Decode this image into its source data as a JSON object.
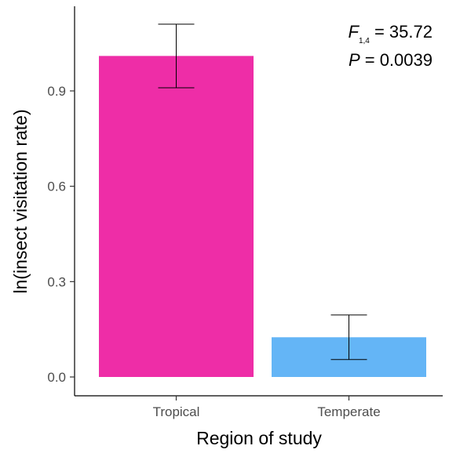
{
  "chart_data": {
    "type": "bar",
    "categories": [
      "Tropical",
      "Temperate"
    ],
    "values": [
      1.01,
      0.125
    ],
    "error_bars": [
      {
        "lower": 0.91,
        "upper": 1.11
      },
      {
        "lower": 0.055,
        "upper": 0.195
      }
    ],
    "colors": [
      "#EE2DA7",
      "#64B5F6"
    ],
    "xlabel": "Region of study",
    "ylabel": "ln(insect visitation rate)",
    "ylim": [
      0,
      1.11
    ],
    "yticks": [
      "0.0",
      "0.3",
      "0.6",
      "0.9"
    ],
    "ytick_values": [
      0,
      0.3,
      0.6,
      0.9
    ],
    "grid": false,
    "annotation": {
      "f_symbol": "F",
      "f_subscript": "1,4",
      "f_value": " = 35.72",
      "p_symbol": "P",
      "p_value": " = 0.0039"
    }
  }
}
